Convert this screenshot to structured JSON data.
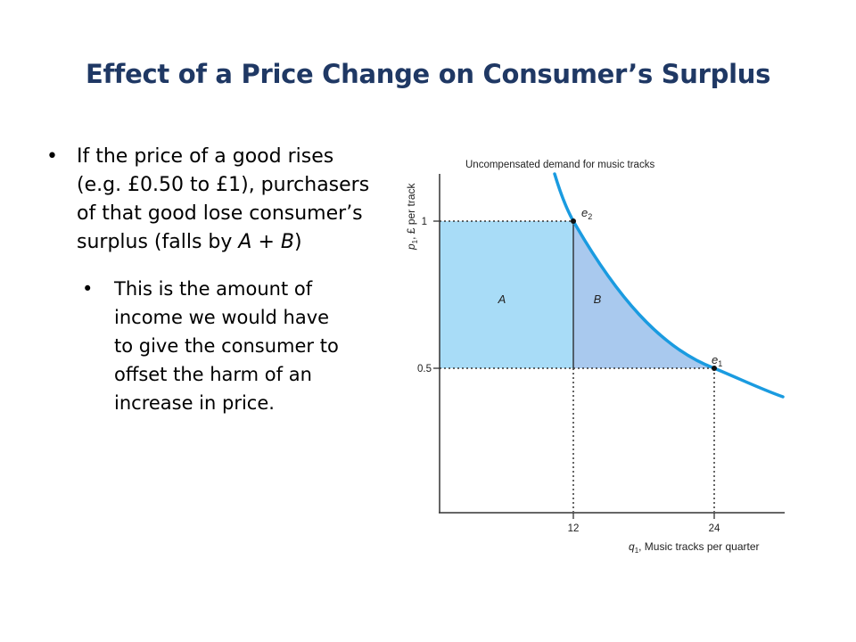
{
  "slide": {
    "title": "Effect of a Price Change on Consumer’s Surplus",
    "bullet1_pre": "If the price of a good rises (e.g. £0.50 to £1), purchasers of that good lose consumer’s surplus (falls by ",
    "bullet1_A": "A",
    "bullet1_plus": " + ",
    "bullet1_B": "B",
    "bullet1_post": ")",
    "bullet2": "This is the amount of income we would have to give the consumer to offset the harm of an increase in price."
  },
  "chart_data": {
    "type": "area",
    "title": "Uncompensated demand for music tracks",
    "ylabel_p": "p",
    "ylabel_sub": "1",
    "ylabel_rest": ", £ per track",
    "xlabel_q": "q",
    "xlabel_sub": "1",
    "xlabel_rest": ", Music tracks per quarter",
    "x_ticks": [
      "12",
      "24"
    ],
    "y_ticks": [
      "1",
      "0.5"
    ],
    "points": [
      {
        "label": "e",
        "sub": "2",
        "x": 12,
        "y": 1
      },
      {
        "label": "e",
        "sub": "1",
        "x": 24,
        "y": 0.5
      }
    ],
    "regions": [
      {
        "label": "A",
        "color": "#a8dcf7"
      },
      {
        "label": "B",
        "color": "#a9c9ee"
      }
    ],
    "curve_color": "#1a9be0",
    "line_color": "#333333"
  }
}
